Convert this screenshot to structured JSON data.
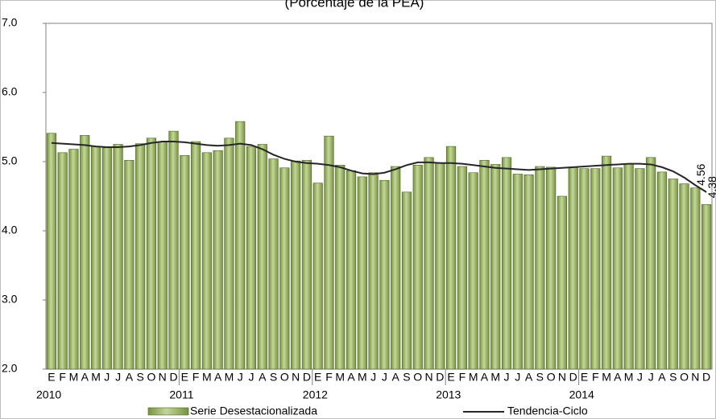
{
  "chart_data": {
    "type": "bar_line",
    "title": "(Porcentaje de la PEA)",
    "categories": [
      "E",
      "F",
      "M",
      "A",
      "M",
      "J",
      "J",
      "A",
      "S",
      "O",
      "N",
      "D",
      "E",
      "F",
      "M",
      "A",
      "M",
      "J",
      "J",
      "A",
      "S",
      "O",
      "N",
      "D",
      "E",
      "F",
      "M",
      "A",
      "M",
      "J",
      "J",
      "A",
      "S",
      "O",
      "N",
      "D",
      "E",
      "F",
      "M",
      "A",
      "M",
      "J",
      "J",
      "A",
      "S",
      "O",
      "N",
      "D",
      "E",
      "F",
      "M",
      "A",
      "M",
      "J",
      "J",
      "A",
      "S",
      "O",
      "N",
      "D"
    ],
    "years": [
      "2010",
      "2011",
      "2012",
      "2013",
      "2014"
    ],
    "series": [
      {
        "name": "Serie Desestacionalizada",
        "type": "bar",
        "color": "#9bbb59",
        "values": [
          5.41,
          5.13,
          5.18,
          5.38,
          5.22,
          5.2,
          5.25,
          5.02,
          5.26,
          5.34,
          5.29,
          5.44,
          5.09,
          5.29,
          5.13,
          5.16,
          5.34,
          5.58,
          5.22,
          5.25,
          5.04,
          4.91,
          5.01,
          5.02,
          4.69,
          5.37,
          4.95,
          4.87,
          4.78,
          4.84,
          4.73,
          4.93,
          4.56,
          4.95,
          5.06,
          4.98,
          5.22,
          4.93,
          4.84,
          5.02,
          4.96,
          5.06,
          4.82,
          4.81,
          4.93,
          4.92,
          4.5,
          4.92,
          4.9,
          4.9,
          5.08,
          4.91,
          4.97,
          4.9,
          5.06,
          4.85,
          4.75,
          4.68,
          4.62,
          4.38
        ]
      },
      {
        "name": "Tendencia-Ciclo",
        "type": "line",
        "color": "#262626",
        "values": [
          5.27,
          5.26,
          5.25,
          5.24,
          5.22,
          5.21,
          5.21,
          5.22,
          5.24,
          5.27,
          5.29,
          5.29,
          5.28,
          5.26,
          5.24,
          5.23,
          5.24,
          5.26,
          5.24,
          5.18,
          5.1,
          5.04,
          5.0,
          4.98,
          4.97,
          4.95,
          4.92,
          4.87,
          4.83,
          4.82,
          4.84,
          4.89,
          4.95,
          4.99,
          4.99,
          4.98,
          4.98,
          4.97,
          4.95,
          4.93,
          4.91,
          4.9,
          4.89,
          4.88,
          4.89,
          4.9,
          4.91,
          4.92,
          4.93,
          4.94,
          4.95,
          4.96,
          4.97,
          4.97,
          4.96,
          4.92,
          4.86,
          4.77,
          4.66,
          4.56
        ]
      }
    ],
    "ylim": [
      2,
      7
    ],
    "yticks": [
      {
        "value": 2,
        "label": "2.0"
      },
      {
        "value": 3,
        "label": "3.0"
      },
      {
        "value": 4,
        "label": "4.0"
      },
      {
        "value": 5,
        "label": "5.0"
      },
      {
        "value": 6,
        "label": "6.0"
      },
      {
        "value": 7,
        "label": "7.0"
      }
    ],
    "grid": false
  }
}
